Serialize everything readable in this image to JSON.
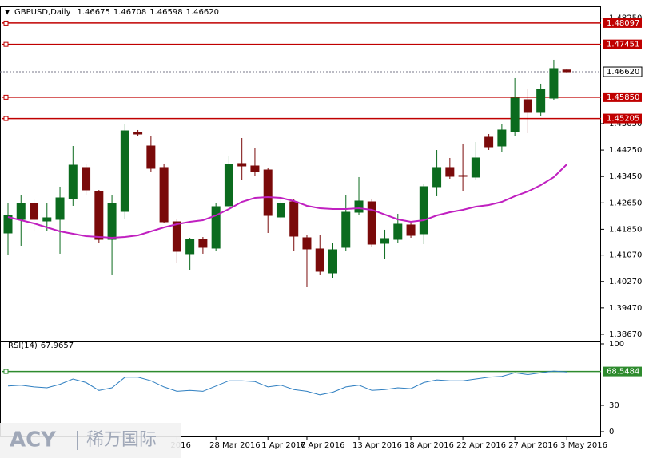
{
  "chart_data": {
    "type": "candlestick",
    "title": "GBPUSD,Daily",
    "header_values": [
      1.46675,
      1.46708,
      1.46598,
      {
        "value": 1.4662,
        "label": "1.46620"
      }
    ],
    "categories": [
      null,
      null,
      null,
      null,
      null,
      null,
      null,
      null,
      null,
      null,
      null,
      null,
      null,
      "2016",
      null,
      null,
      "28 Mar 2016",
      null,
      null,
      null,
      "1 Apr 2016",
      null,
      null,
      "7 Apr 2016",
      null,
      null,
      null,
      "13 Apr 2016",
      null,
      null,
      null,
      "18 Apr 2016",
      null,
      null,
      null,
      "22 Apr 2016",
      null,
      null,
      null,
      "27 Apr 2016",
      null,
      null,
      null,
      "3 May 2016"
    ],
    "candles": [
      [
        1.41739,
        1.42633,
        1.41062,
        1.4227
      ],
      [
        1.4215,
        1.42875,
        1.41352,
        1.42633
      ],
      [
        1.42633,
        1.42754,
        1.41787,
        1.4215
      ],
      [
        1.42101,
        1.42633,
        1.41787,
        1.42198
      ],
      [
        1.4215,
        1.43141,
        1.41111,
        1.42802
      ],
      [
        1.42778,
        1.44373,
        1.42561,
        1.43793
      ],
      [
        1.43721,
        1.43842,
        1.42875,
        1.43044
      ],
      [
        1.42996,
        1.43044,
        1.41425,
        1.41545
      ],
      [
        1.41545,
        1.42875,
        1.40458,
        1.42633
      ],
      [
        1.42391,
        1.4505,
        1.4215,
        1.44832
      ],
      [
        1.44784,
        1.44857,
        1.44687,
        1.44736
      ],
      [
        1.44373,
        1.44687,
        1.436,
        1.43697
      ],
      [
        1.43721,
        1.43842,
        1.42029,
        1.42077
      ],
      [
        1.42077,
        1.4215,
        1.4082,
        1.41183
      ],
      [
        1.41111,
        1.41594,
        1.40627,
        1.41545
      ],
      [
        1.41545,
        1.41618,
        1.41111,
        1.41304
      ],
      [
        1.4128,
        1.42633,
        1.41183,
        1.42536
      ],
      [
        1.42561,
        1.44083,
        1.42512,
        1.43817
      ],
      [
        1.43842,
        1.44615,
        1.43358,
        1.43769
      ],
      [
        1.43769,
        1.44325,
        1.43479,
        1.436
      ],
      [
        1.43648,
        1.43721,
        1.41739,
        1.4227
      ],
      [
        1.42222,
        1.42802,
        1.4215,
        1.42633
      ],
      [
        1.42681,
        1.42754,
        1.41183,
        1.41642
      ],
      [
        1.41594,
        1.41666,
        1.40095,
        1.41256
      ],
      [
        1.41256,
        1.41666,
        1.40458,
        1.40579
      ],
      [
        1.4053,
        1.41425,
        1.40385,
        1.41231
      ],
      [
        1.41304,
        1.42875,
        1.41183,
        1.42367
      ],
      [
        1.42367,
        1.43431,
        1.4227,
        1.42706
      ],
      [
        1.42681,
        1.42754,
        1.41304,
        1.414
      ],
      [
        1.41425,
        1.41836,
        1.40941,
        1.4157
      ],
      [
        1.41545,
        1.42319,
        1.41425,
        1.42005
      ],
      [
        1.41981,
        1.42077,
        1.41594,
        1.41666
      ],
      [
        1.41715,
        1.43237,
        1.414,
        1.43141
      ],
      [
        1.43141,
        1.44252,
        1.42851,
        1.43721
      ],
      [
        1.43721,
        1.44011,
        1.43382,
        1.43455
      ],
      [
        1.43479,
        1.44446,
        1.42996,
        1.43455
      ],
      [
        1.43431,
        1.44494,
        1.43358,
        1.44011
      ],
      [
        1.44639,
        1.44736,
        1.44252,
        1.44349
      ],
      [
        1.44373,
        1.4505,
        1.44204,
        1.44857
      ],
      [
        1.44808,
        1.46428,
        1.44687,
        1.45823
      ],
      [
        1.45775,
        1.46089,
        1.4476,
        1.45413
      ],
      [
        1.45413,
        1.46259,
        1.45268,
        1.46089
      ],
      [
        1.45823,
        1.46984,
        1.45775,
        1.46718
      ],
      [
        1.46675,
        1.46708,
        1.46598,
        1.4662
      ]
    ],
    "up_color": "#0b6b1e",
    "down_color": "#7a0a0a",
    "ma": {
      "color": "#c020c0",
      "values": [
        1.42222,
        1.42125,
        1.42029,
        1.41908,
        1.41787,
        1.41715,
        1.41642,
        1.41618,
        1.41594,
        1.41618,
        1.41666,
        1.41787,
        1.41908,
        1.42005,
        1.42077,
        1.42125,
        1.4227,
        1.42464,
        1.42681,
        1.42802,
        1.42826,
        1.42802,
        1.42706,
        1.42561,
        1.42488,
        1.42464,
        1.42464,
        1.42488,
        1.4244,
        1.42295,
        1.4215,
        1.42077,
        1.42125,
        1.4227,
        1.42367,
        1.4244,
        1.42536,
        1.42585,
        1.42681,
        1.42851,
        1.42996,
        1.43189,
        1.43431,
        1.43817
      ]
    },
    "ylim": [
      1.38524,
      1.48506
    ],
    "yticks": [
      {
        "value": 1.4825,
        "label": "1.48250"
      },
      {
        "value": 1.4505,
        "label": "1.45050"
      },
      {
        "value": 1.4425,
        "label": "1.44250"
      },
      {
        "value": 1.4345,
        "label": "1.43450"
      },
      {
        "value": 1.4265,
        "label": "1.42650"
      },
      {
        "value": 1.4185,
        "label": "1.41850"
      },
      {
        "value": 1.4107,
        "label": "1.41070"
      },
      {
        "value": 1.4027,
        "label": "1.40270"
      },
      {
        "value": 1.3947,
        "label": "1.39470"
      },
      {
        "value": 1.3867,
        "label": "1.38670"
      }
    ],
    "levels": [
      1.48097,
      1.47451,
      {
        "value": 1.4585,
        "label": "1.45850"
      },
      1.45205
    ],
    "level_color": "#c00000",
    "last_price": {
      "value": 1.4662,
      "label": "1.46620"
    },
    "rsi": {
      "name": "RSI(14)",
      "color": "#2f7fc1",
      "values": [
        52,
        53,
        51,
        50,
        54,
        60,
        56,
        47,
        50,
        62,
        62,
        58,
        51,
        46,
        47,
        46,
        52,
        58,
        58,
        57,
        51,
        53,
        48,
        46,
        42,
        45,
        51,
        53,
        47,
        48,
        50,
        49,
        56,
        59,
        58,
        58,
        60,
        62,
        63,
        67,
        65,
        67,
        69,
        67.9657
      ],
      "ylim": [
        0,
        100
      ],
      "yticks": [
        100,
        30,
        0
      ],
      "level": 68.5484,
      "level_color": "#2e8b2e"
    },
    "watermark": "ACY",
    "watermark_cn": "稀万国际"
  }
}
